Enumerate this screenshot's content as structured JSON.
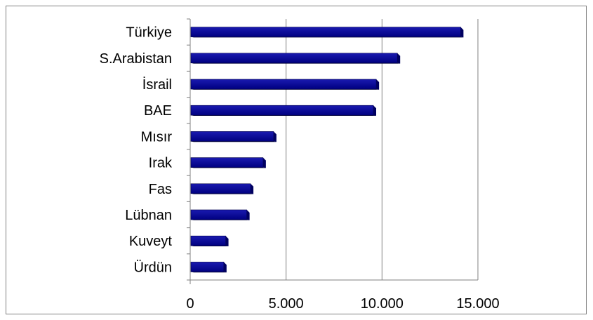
{
  "chart_data": {
    "type": "bar",
    "orientation": "horizontal",
    "title": "",
    "xlabel": "",
    "ylabel": "",
    "categories": [
      "Türkiye",
      "S.Arabistan",
      "İsrail",
      "BAE",
      "Mısır",
      "Irak",
      "Fas",
      "Lübnan",
      "Kuveyt",
      "Ürdün"
    ],
    "values": [
      14100,
      10800,
      9700,
      9550,
      4350,
      3800,
      3150,
      2950,
      1850,
      1750
    ],
    "xlim": [
      0,
      15000
    ],
    "x_ticks": [
      0,
      5000,
      10000,
      15000
    ],
    "x_tick_labels": [
      "0",
      "5.000",
      "10.000",
      "15.000"
    ],
    "grid": "vertical",
    "legend": "none",
    "bar_color": "#000080",
    "bar_edge_color": "#00004d"
  }
}
